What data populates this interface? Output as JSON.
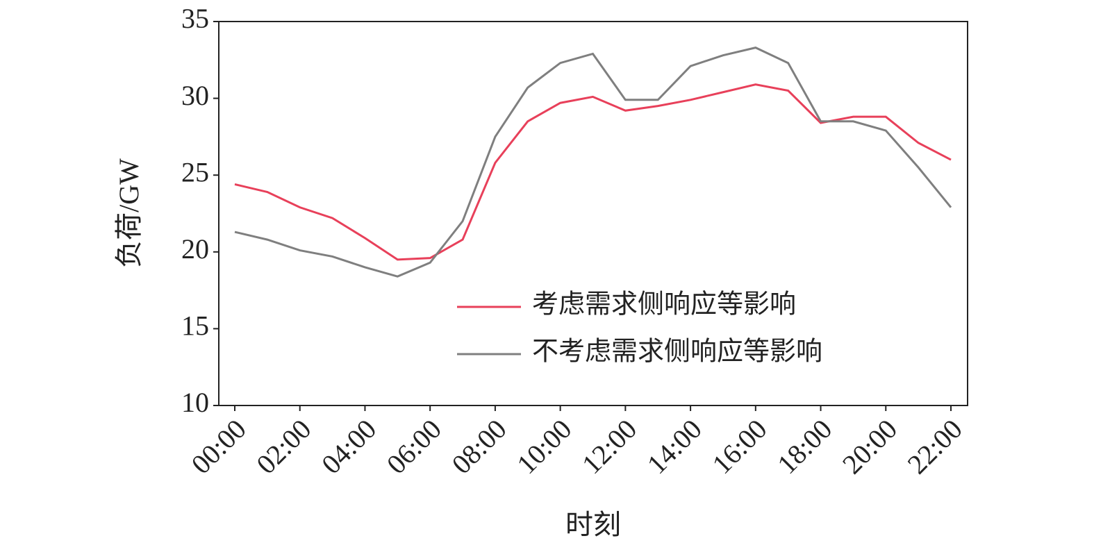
{
  "chart_data": {
    "type": "line",
    "x_label": "时刻",
    "y_label": "负荷/GW",
    "categories": [
      "00:00",
      null,
      "02:00",
      null,
      "04:00",
      null,
      "06:00",
      null,
      "08:00",
      null,
      "10:00",
      null,
      "12:00",
      null,
      "14:00",
      null,
      "16:00",
      null,
      "18:00",
      null,
      "20:00",
      null,
      "22:00"
    ],
    "series": [
      {
        "name": "考虑需求侧响应等影响",
        "color": "#e8405a",
        "values": [
          24.4,
          23.9,
          22.9,
          22.2,
          20.9,
          19.5,
          19.6,
          20.8,
          25.8,
          28.5,
          29.7,
          30.1,
          29.2,
          29.5,
          29.9,
          30.4,
          30.9,
          30.5,
          28.4,
          28.8,
          28.8,
          27.1,
          26.0
        ]
      },
      {
        "name": "不考虑需求侧响应等影响",
        "color": "#7f7f7f",
        "values": [
          21.3,
          20.8,
          20.1,
          19.7,
          19.0,
          18.4,
          19.3,
          22.0,
          27.5,
          30.7,
          32.3,
          32.9,
          29.9,
          29.9,
          32.1,
          32.8,
          33.3,
          32.3,
          28.5,
          28.5,
          27.9,
          25.5,
          22.9
        ]
      }
    ],
    "ylim": [
      10,
      35
    ],
    "yticks": [
      10,
      15,
      20,
      25,
      30,
      35
    ],
    "legend": "lower right",
    "grid": false
  }
}
